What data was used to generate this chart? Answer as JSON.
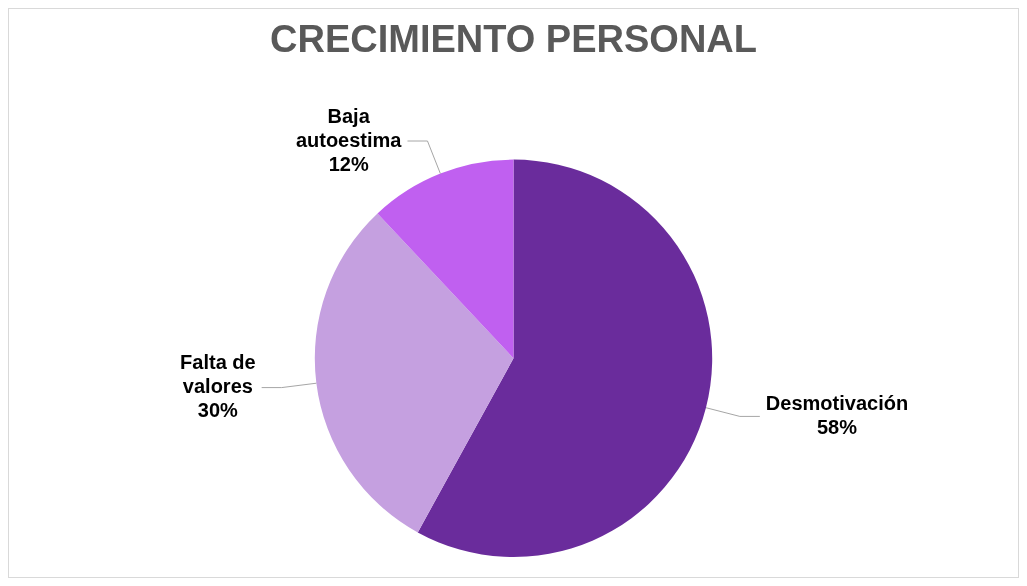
{
  "chart_data": {
    "type": "pie",
    "title": "CRECIMIENTO PERSONAL",
    "categories": [
      "Desmotivación",
      "Falta de valores",
      "Baja autoestima"
    ],
    "values": [
      58,
      30,
      12
    ],
    "colors": [
      "#6a2c9c",
      "#c5a0e0",
      "#c060f0"
    ],
    "value_labels": [
      "58%",
      "30%",
      "12%"
    ],
    "legend": false
  }
}
